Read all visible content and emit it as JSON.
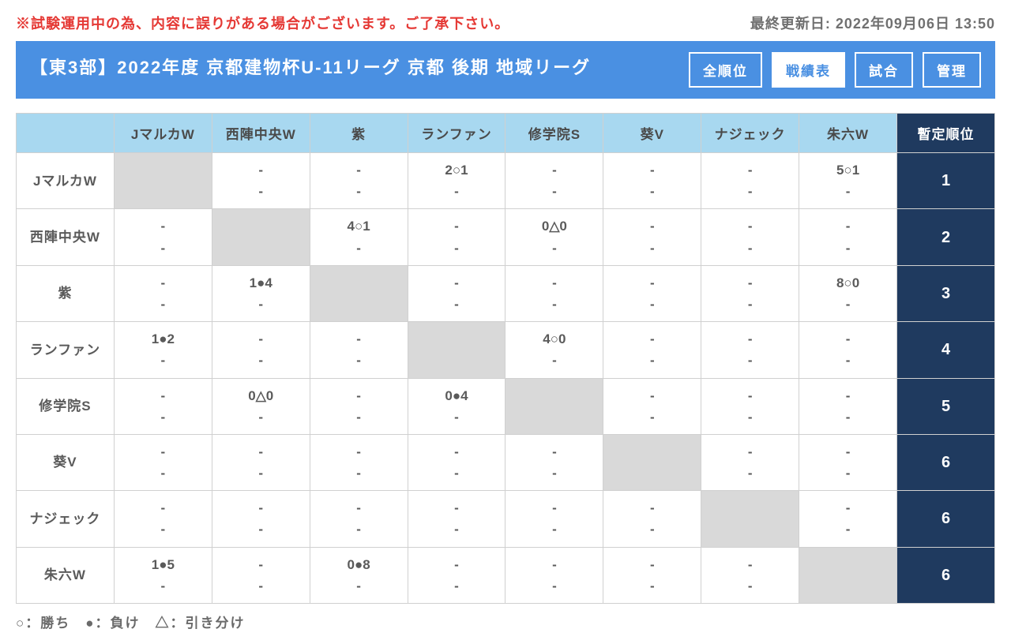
{
  "warning": "※試験運用中の為、内容に誤りがある場合がございます。ご了承下さい。",
  "updated": "最終更新日: 2022年09月06日 13:50",
  "title": "【東3部】2022年度 京都建物杯U-11リーグ 京都 後期 地域リーグ",
  "tabs": {
    "all_rank": "全順位",
    "results": "戦績表",
    "matches": "試合",
    "admin": "管理"
  },
  "teams": [
    "JマルカW",
    "西陣中央W",
    "紫",
    "ランファン",
    "修学院S",
    "葵V",
    "ナジェック",
    "朱六W"
  ],
  "rank_header": "暫定順位",
  "ranks": [
    "1",
    "2",
    "3",
    "4",
    "5",
    "6",
    "6",
    "6"
  ],
  "grid": [
    [
      null,
      [
        "-",
        "-"
      ],
      [
        "-",
        "-"
      ],
      [
        "2○1",
        "-"
      ],
      [
        "-",
        "-"
      ],
      [
        "-",
        "-"
      ],
      [
        "-",
        "-"
      ],
      [
        "5○1",
        "-"
      ]
    ],
    [
      [
        "-",
        "-"
      ],
      null,
      [
        "4○1",
        "-"
      ],
      [
        "-",
        "-"
      ],
      [
        "0△0",
        "-"
      ],
      [
        "-",
        "-"
      ],
      [
        "-",
        "-"
      ],
      [
        "-",
        "-"
      ]
    ],
    [
      [
        "-",
        "-"
      ],
      [
        "1●4",
        "-"
      ],
      null,
      [
        "-",
        "-"
      ],
      [
        "-",
        "-"
      ],
      [
        "-",
        "-"
      ],
      [
        "-",
        "-"
      ],
      [
        "8○0",
        "-"
      ]
    ],
    [
      [
        "1●2",
        "-"
      ],
      [
        "-",
        "-"
      ],
      [
        "-",
        "-"
      ],
      null,
      [
        "4○0",
        "-"
      ],
      [
        "-",
        "-"
      ],
      [
        "-",
        "-"
      ],
      [
        "-",
        "-"
      ]
    ],
    [
      [
        "-",
        "-"
      ],
      [
        "0△0",
        "-"
      ],
      [
        "-",
        "-"
      ],
      [
        "0●4",
        "-"
      ],
      null,
      [
        "-",
        "-"
      ],
      [
        "-",
        "-"
      ],
      [
        "-",
        "-"
      ]
    ],
    [
      [
        "-",
        "-"
      ],
      [
        "-",
        "-"
      ],
      [
        "-",
        "-"
      ],
      [
        "-",
        "-"
      ],
      [
        "-",
        "-"
      ],
      null,
      [
        "-",
        "-"
      ],
      [
        "-",
        "-"
      ]
    ],
    [
      [
        "-",
        "-"
      ],
      [
        "-",
        "-"
      ],
      [
        "-",
        "-"
      ],
      [
        "-",
        "-"
      ],
      [
        "-",
        "-"
      ],
      [
        "-",
        "-"
      ],
      null,
      [
        "-",
        "-"
      ]
    ],
    [
      [
        "1●5",
        "-"
      ],
      [
        "-",
        "-"
      ],
      [
        "0●8",
        "-"
      ],
      [
        "-",
        "-"
      ],
      [
        "-",
        "-"
      ],
      [
        "-",
        "-"
      ],
      [
        "-",
        "-"
      ],
      null
    ]
  ],
  "legend": "○：勝ち　●：負け　△：引き分け"
}
